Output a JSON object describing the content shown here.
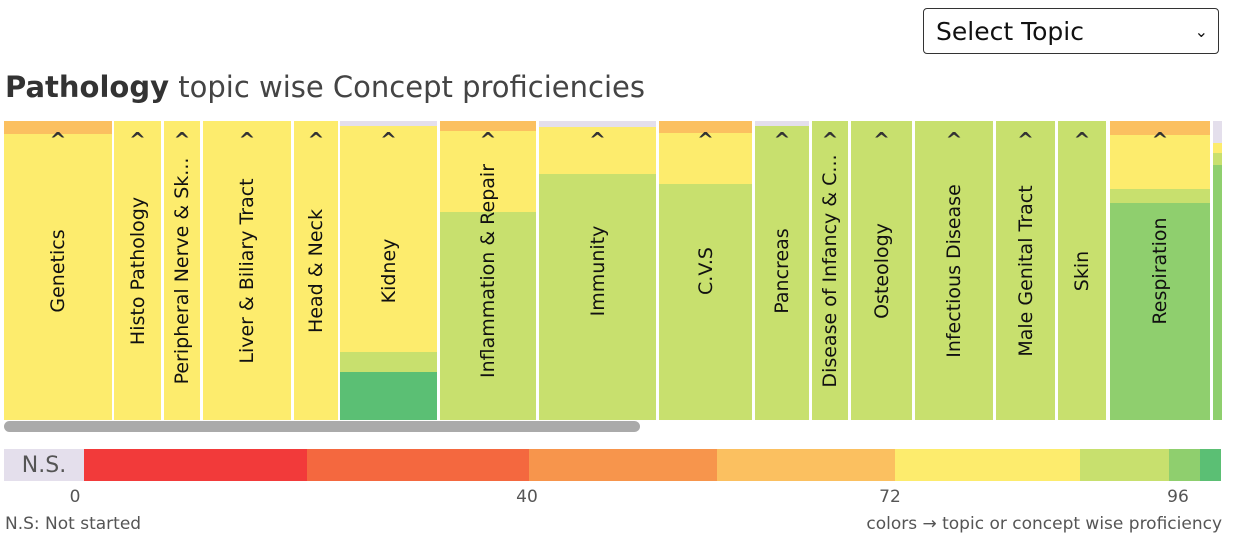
{
  "topic_select": {
    "value": "Select Topic"
  },
  "title": {
    "subject": "Pathology",
    "rest": " topic wise Concept proficiencies"
  },
  "colors": {
    "ns": "#e4dfec",
    "red": "#f23a3a",
    "orange_red": "#f4683f",
    "orange": "#f7954c",
    "light_orange": "#fbc060",
    "yellow": "#fdec6d",
    "light_green": "#c8e06e",
    "green": "#8fcf6e",
    "dark_green": "#5bbf74"
  },
  "topics": [
    {
      "name": "Genetics",
      "segments": [
        [
          "light_orange",
          4.3
        ],
        [
          "yellow",
          95.7
        ]
      ]
    },
    {
      "name": "Histo Pathology",
      "segments": [
        [
          "yellow",
          100
        ]
      ]
    },
    {
      "name": "Peripheral Nerve & Sk...",
      "segments": [
        [
          "yellow",
          100
        ]
      ]
    },
    {
      "name": "Liver & Biliary Tract",
      "segments": [
        [
          "yellow",
          100
        ]
      ]
    },
    {
      "name": "Head & Neck",
      "segments": [
        [
          "yellow",
          100
        ]
      ]
    },
    {
      "name": "Kidney",
      "segments": [
        [
          "ns",
          1.7
        ],
        [
          "yellow",
          75.6
        ],
        [
          "light_green",
          6.7
        ],
        [
          "dark_green",
          16
        ]
      ]
    },
    {
      "name": "Inflammation & Repair",
      "segments": [
        [
          "light_orange",
          3.4
        ],
        [
          "yellow",
          27
        ],
        [
          "light_green",
          69.6
        ]
      ]
    },
    {
      "name": "Immunity",
      "segments": [
        [
          "ns",
          2
        ],
        [
          "yellow",
          15.7
        ],
        [
          "light_green",
          82.3
        ]
      ]
    },
    {
      "name": "C.V.S",
      "segments": [
        [
          "light_orange",
          4
        ],
        [
          "yellow",
          17
        ],
        [
          "light_green",
          79
        ]
      ]
    },
    {
      "name": "Pancreas",
      "segments": [
        [
          "ns",
          1.7
        ],
        [
          "light_green",
          98.3
        ]
      ]
    },
    {
      "name": "Disease of Infancy & C...",
      "segments": [
        [
          "light_green",
          100
        ]
      ]
    },
    {
      "name": "Osteology",
      "segments": [
        [
          "light_green",
          100
        ]
      ]
    },
    {
      "name": "Infectious Disease",
      "segments": [
        [
          "light_green",
          100
        ]
      ]
    },
    {
      "name": "Male Genital Tract",
      "segments": [
        [
          "light_green",
          100
        ]
      ]
    },
    {
      "name": "Skin",
      "segments": [
        [
          "light_green",
          100
        ]
      ]
    },
    {
      "name": "Respiration",
      "segments": [
        [
          "light_orange",
          4.7
        ],
        [
          "yellow",
          18
        ],
        [
          "light_green",
          4.7
        ],
        [
          "green",
          72.6
        ]
      ]
    },
    {
      "name": "",
      "segments": [
        [
          "ns",
          7.4
        ],
        [
          "yellow",
          3.3
        ],
        [
          "light_green",
          4
        ],
        [
          "green",
          85.3
        ]
      ]
    }
  ],
  "legend": {
    "ns_label": "N.S.",
    "ticks": [
      "0",
      "40",
      "72",
      "96"
    ],
    "ns_note": "N.S: Not started",
    "colors_note": "colors → topic or concept wise proficiency"
  }
}
